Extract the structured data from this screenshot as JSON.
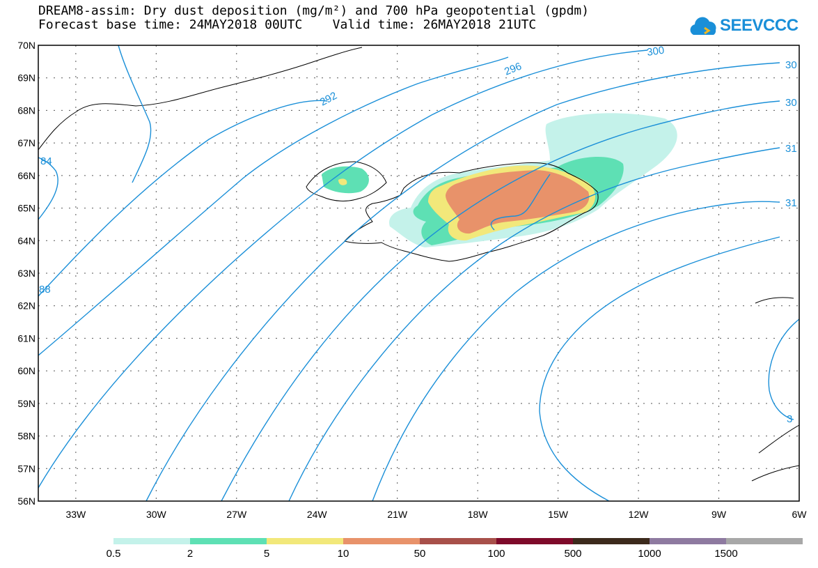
{
  "title": {
    "line1": "DREAM8-assim: Dry dust deposition (mg/m²) and 700 hPa geopotential (gpdm)",
    "line2": "Forecast base time: 24MAY2018 00UTC    Valid time: 26MAY2018 21UTC"
  },
  "logo": {
    "text": "SEEVCCC",
    "icon": "cloud-icon",
    "color": "#1a8fd8"
  },
  "map": {
    "projection": "lat-lon",
    "lat_range": [
      56,
      70
    ],
    "lon_range": [
      -34.4,
      -6
    ],
    "lat_ticks": [
      "70N",
      "69N",
      "68N",
      "67N",
      "66N",
      "65N",
      "64N",
      "63N",
      "62N",
      "61N",
      "60N",
      "59N",
      "58N",
      "57N",
      "56N"
    ],
    "lon_ticks": [
      "33W",
      "30W",
      "27W",
      "24W",
      "21W",
      "18W",
      "15W",
      "12W",
      "9W",
      "6W"
    ],
    "grid": "dotted",
    "contour_color": "#1a8fd8",
    "contour_labels": [
      "292",
      "296",
      "300",
      "30",
      "30",
      "31",
      "31",
      "88",
      "84",
      "3"
    ]
  },
  "legend": {
    "colors": [
      "#c4f2ea",
      "#5ee0b4",
      "#f2e87a",
      "#e8926a",
      "#a8504a",
      "#7e0a2a",
      "#3c2a1c",
      "#8e7aa0",
      "#a8a8a8"
    ],
    "labels": [
      "0.5",
      "2",
      "5",
      "10",
      "50",
      "100",
      "500",
      "1000",
      "1500"
    ]
  }
}
